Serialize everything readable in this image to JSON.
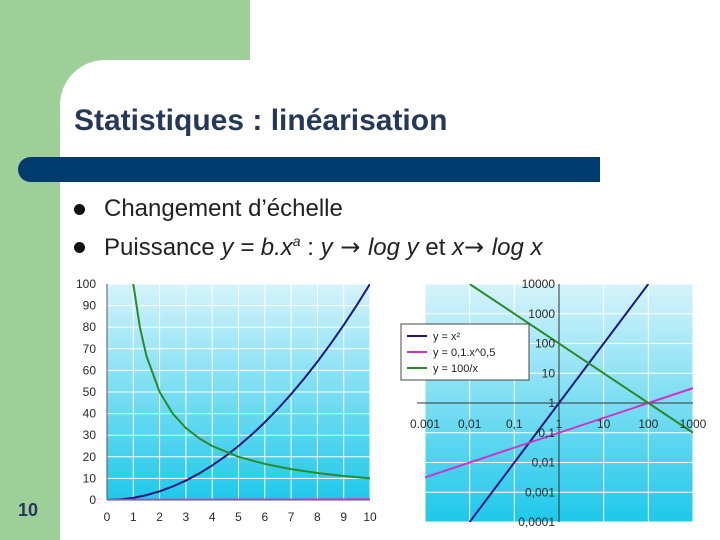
{
  "slide": {
    "title": "Statistiques : linéarisation",
    "bullets": [
      {
        "text_parts": [
          {
            "t": "Changement d’échelle",
            "i": false
          }
        ]
      },
      {
        "text_parts": [
          {
            "t": "Puissance ",
            "i": false
          },
          {
            "t": "y = b.x",
            "i": true
          },
          {
            "t": "a",
            "i": true,
            "sup": true
          },
          {
            "t": " : ",
            "i": false
          },
          {
            "t": "y",
            "i": true
          },
          {
            "t": " → ",
            "i": false,
            "arrow": true
          },
          {
            "t": "log y",
            "i": true
          },
          {
            "t": " et ",
            "i": false
          },
          {
            "t": "x",
            "i": true
          },
          {
            "t": "→ ",
            "i": false,
            "arrow": true
          },
          {
            "t": "log x",
            "i": true
          }
        ]
      }
    ],
    "slide_number": "10"
  },
  "colors": {
    "green_block": "#9ecf98",
    "title_bar": "#003b6e",
    "title_text": "#25385a",
    "chart_top": "#d6f3fb",
    "chart_bottom": "#1ec8ea",
    "series_x2": "#1a1a7e",
    "series_sqrt": "#d033c8",
    "series_inv": "#2a8a2a"
  },
  "chart_data": [
    {
      "type": "line",
      "x_ticks": [
        "0",
        "1",
        "2",
        "3",
        "4",
        "5",
        "6",
        "7",
        "8",
        "9",
        "10"
      ],
      "y_ticks": [
        "0",
        "10",
        "20",
        "30",
        "40",
        "50",
        "60",
        "70",
        "80",
        "90",
        "100"
      ],
      "xlim": [
        0,
        10
      ],
      "ylim": [
        0,
        100
      ],
      "grid": true,
      "series": [
        {
          "color_key": "series_x2",
          "x": [
            0,
            0.5,
            1,
            1.5,
            2,
            2.5,
            3,
            3.5,
            4,
            4.5,
            5,
            5.5,
            6,
            6.5,
            7,
            7.5,
            8,
            8.5,
            9,
            9.5,
            10
          ],
          "y": [
            0,
            0.25,
            1,
            2.25,
            4,
            6.25,
            9,
            12.25,
            16,
            20.25,
            25,
            30.25,
            36,
            42.25,
            49,
            56.25,
            64,
            72.25,
            81,
            90.25,
            100
          ]
        },
        {
          "color_key": "series_sqrt",
          "x": [
            0,
            1,
            2,
            3,
            4,
            5,
            6,
            7,
            8,
            9,
            10
          ],
          "y": [
            0,
            0.1,
            0.14,
            0.17,
            0.2,
            0.22,
            0.24,
            0.26,
            0.28,
            0.3,
            0.32
          ]
        },
        {
          "color_key": "series_inv",
          "x": [
            1,
            1.25,
            1.5,
            2,
            2.5,
            3,
            3.5,
            4,
            5,
            6,
            7,
            8,
            9,
            10
          ],
          "y": [
            100,
            80,
            66.7,
            50,
            40,
            33.3,
            28.6,
            25,
            20,
            16.7,
            14.3,
            12.5,
            11.1,
            10
          ]
        }
      ]
    },
    {
      "type": "line",
      "log_scale": true,
      "x_ticks": [
        "0.001",
        "0,01",
        "0,1",
        "1",
        "10",
        "100",
        "1000"
      ],
      "y_ticks": [
        "10000",
        "1000",
        "100",
        "10",
        "1",
        "0,1",
        "0,01",
        "0,001",
        "0,0001"
      ],
      "xlim": [
        0.001,
        1000
      ],
      "ylim": [
        0.0001,
        10000
      ],
      "grid": true,
      "legend": {
        "placement": "top-left",
        "entries": [
          {
            "label": "y = x²",
            "color_key": "series_x2"
          },
          {
            "label": "y = 0,1.x^0,5",
            "color_key": "series_sqrt"
          },
          {
            "label": "y = 100/x",
            "color_key": "series_inv"
          }
        ]
      },
      "series": [
        {
          "color_key": "series_x2",
          "x": [
            0.01,
            100
          ],
          "y": [
            0.0001,
            10000
          ]
        },
        {
          "color_key": "series_sqrt",
          "x": [
            0.001,
            1000
          ],
          "y": [
            0.00316,
            3.16
          ]
        },
        {
          "color_key": "series_inv",
          "x": [
            0.01,
            1000
          ],
          "y": [
            10000,
            0.1
          ]
        }
      ]
    }
  ]
}
